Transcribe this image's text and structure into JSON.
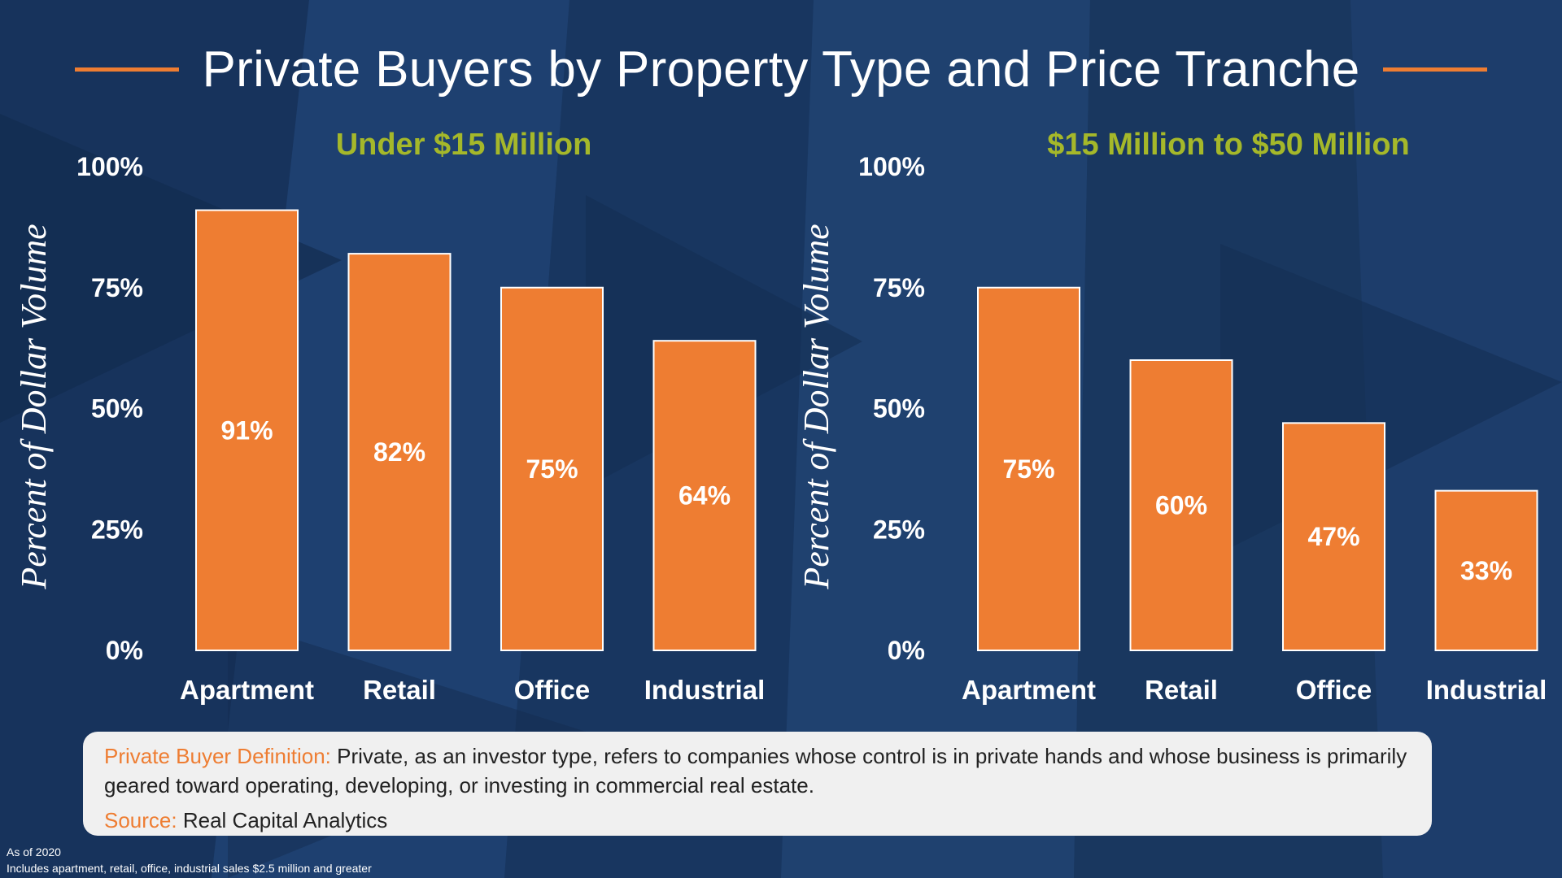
{
  "title": "Private Buyers by Property Type and Price Tranche",
  "colors": {
    "bar": "#ee7d32",
    "accent": "#ee7d32",
    "panel_title": "#a5b82a",
    "background": "#1b3a66"
  },
  "chart_data": [
    {
      "type": "bar",
      "title": "Under $15 Million",
      "ylabel": "Percent of Dollar Volume",
      "xlabel": "",
      "categories": [
        "Apartment",
        "Retail",
        "Office",
        "Industrial"
      ],
      "values": [
        91,
        82,
        75,
        64
      ],
      "value_labels": [
        "91%",
        "82%",
        "75%",
        "64%"
      ],
      "ylim": [
        0,
        100
      ],
      "yticks": [
        0,
        25,
        50,
        75,
        100
      ],
      "ytick_labels": [
        "0%",
        "25%",
        "50%",
        "75%",
        "100%"
      ],
      "grid": false
    },
    {
      "type": "bar",
      "title": "$15 Million to $50 Million",
      "ylabel": "Percent of Dollar Volume",
      "xlabel": "",
      "categories": [
        "Apartment",
        "Retail",
        "Office",
        "Industrial"
      ],
      "values": [
        75,
        60,
        47,
        33
      ],
      "value_labels": [
        "75%",
        "60%",
        "47%",
        "33%"
      ],
      "ylim": [
        0,
        100
      ],
      "yticks": [
        0,
        25,
        50,
        75,
        100
      ],
      "ytick_labels": [
        "0%",
        "25%",
        "50%",
        "75%",
        "100%"
      ],
      "grid": false
    }
  ],
  "definition": {
    "label": "Private Buyer Definition:",
    "text": "Private, as an investor type, refers to companies whose control is in private hands and whose business is primarily geared toward operating, developing, or investing in commercial real estate."
  },
  "source": {
    "label": "Source:",
    "text": "Real Capital Analytics"
  },
  "footnotes": [
    "As of 2020",
    "Includes apartment, retail, office, industrial sales $2.5 million and greater"
  ]
}
